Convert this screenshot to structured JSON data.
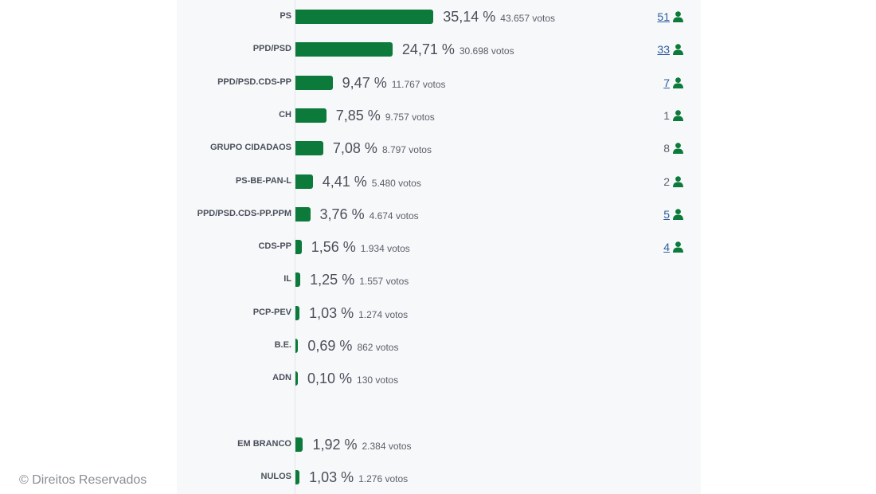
{
  "chart_data": {
    "type": "bar",
    "orientation": "horizontal",
    "colors": {
      "bar": "#0b7a3a",
      "link": "#2a5d9f"
    },
    "rows": [
      {
        "label": "PS",
        "pct": 35.14,
        "pct_text": "35,14 %",
        "votes_text": "43.657 votos",
        "seats": "51",
        "seats_link": true
      },
      {
        "label": "PPD/PSD",
        "pct": 24.71,
        "pct_text": "24,71 %",
        "votes_text": "30.698 votos",
        "seats": "33",
        "seats_link": true
      },
      {
        "label": "PPD/PSD.CDS-PP",
        "pct": 9.47,
        "pct_text": "9,47 %",
        "votes_text": "11.767 votos",
        "seats": "7",
        "seats_link": true
      },
      {
        "label": "CH",
        "pct": 7.85,
        "pct_text": "7,85 %",
        "votes_text": "9.757 votos",
        "seats": "1",
        "seats_link": false
      },
      {
        "label": "GRUPO CIDADAOS",
        "pct": 7.08,
        "pct_text": "7,08 %",
        "votes_text": "8.797 votos",
        "seats": "8",
        "seats_link": false
      },
      {
        "label": "PS-BE-PAN-L",
        "pct": 4.41,
        "pct_text": "4,41 %",
        "votes_text": "5.480 votos",
        "seats": "2",
        "seats_link": false
      },
      {
        "label": "PPD/PSD.CDS-PP.PPM",
        "pct": 3.76,
        "pct_text": "3,76 %",
        "votes_text": "4.674 votos",
        "seats": "5",
        "seats_link": true
      },
      {
        "label": "CDS-PP",
        "pct": 1.56,
        "pct_text": "1,56 %",
        "votes_text": "1.934 votos",
        "seats": "4",
        "seats_link": true
      },
      {
        "label": "IL",
        "pct": 1.25,
        "pct_text": "1,25 %",
        "votes_text": "1.557 votos"
      },
      {
        "label": "PCP-PEV",
        "pct": 1.03,
        "pct_text": "1,03 %",
        "votes_text": "1.274 votos"
      },
      {
        "label": "B.E.",
        "pct": 0.69,
        "pct_text": "0,69 %",
        "votes_text": "862 votos"
      },
      {
        "label": "ADN",
        "pct": 0.1,
        "pct_text": "0,10 %",
        "votes_text": "130 votos"
      },
      {
        "label": "EM BRANCO",
        "pct": 1.92,
        "pct_text": "1,92 %",
        "votes_text": "2.384 votos",
        "gap_before": true
      },
      {
        "label": "NULOS",
        "pct": 1.03,
        "pct_text": "1,03 %",
        "votes_text": "1.276 votos"
      }
    ]
  },
  "watermark": "© Direitos Reservados"
}
